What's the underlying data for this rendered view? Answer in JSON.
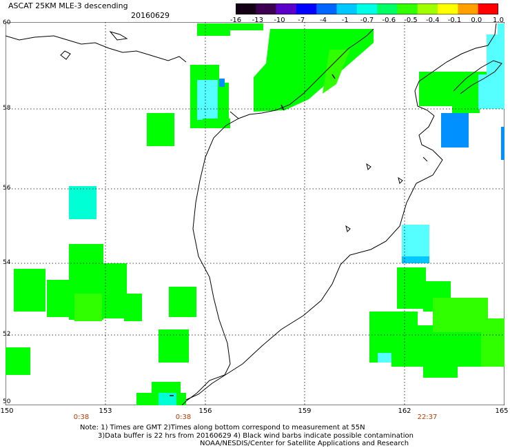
{
  "header": {
    "title": "ASCAT 25KM MLE-3 descending",
    "date": "20160629"
  },
  "colorbar": {
    "labels": [
      "-16",
      "-13",
      "-10",
      "-7",
      "-4",
      "-1",
      "-0.7",
      "-0.6",
      "-0.5",
      "-0.4",
      "-0.1",
      "0.0",
      "1.0"
    ],
    "colors": [
      "#140014",
      "#3c0050",
      "#5a00c8",
      "#0000ff",
      "#0064ff",
      "#00c8ff",
      "#00ffe6",
      "#00ff64",
      "#32ff00",
      "#a0ff00",
      "#ffff00",
      "#ffa000",
      "#ff0000"
    ]
  },
  "axes": {
    "lon_labels": [
      "150",
      "153",
      "156",
      "159",
      "162",
      "165"
    ],
    "lat_labels": [
      "60",
      "58",
      "56",
      "54",
      "52",
      "50"
    ],
    "times": [
      "0:38",
      "0:38",
      "22:37"
    ]
  },
  "notes": {
    "line1": "Note: 1) Times are GMT 2)Times along bottom correspond to measurement at 55N",
    "line2": "3)Data buffer is 22 hrs from 20160629 4) Black wind barbs indicate possible contamination",
    "line3": "NOAA/NESDIS/Center for Satellite Applications and Research"
  },
  "map": {
    "colors": {
      "green": "#00ff00",
      "green_mid": "#30ff00",
      "cyan": "#00ffd4",
      "light_cyan": "#55ffff",
      "blue": "#0090ff",
      "coast": "#000000"
    }
  }
}
